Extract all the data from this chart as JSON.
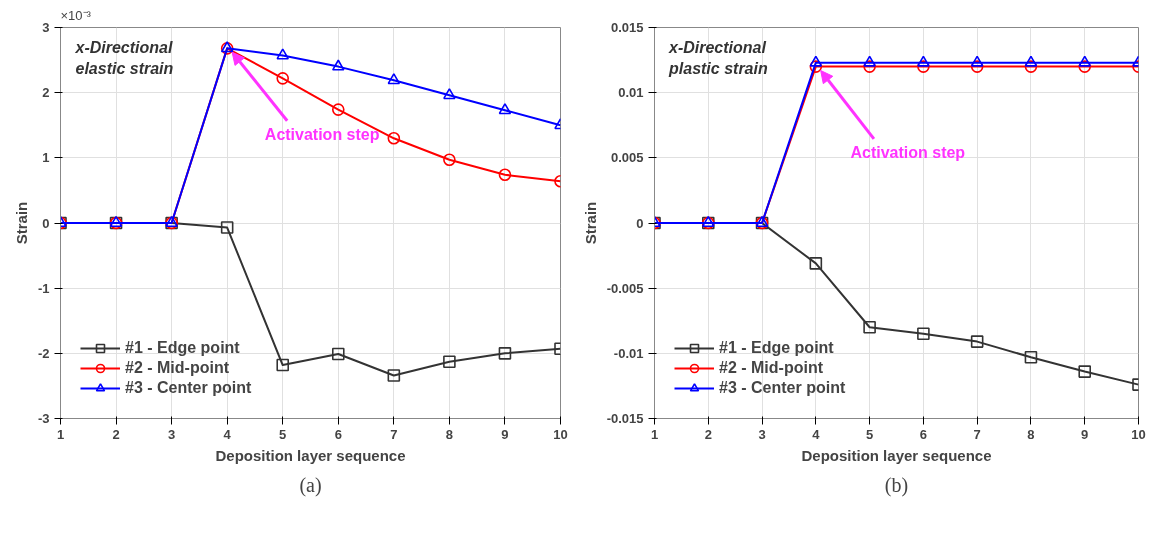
{
  "chart_data": [
    {
      "type": "line",
      "xlabel": "Deposition layer sequence",
      "ylabel": "Strain",
      "x": [
        1,
        2,
        3,
        4,
        5,
        6,
        7,
        8,
        9,
        10
      ],
      "xlim": [
        1,
        10
      ],
      "xticks": [
        1,
        2,
        3,
        4,
        5,
        6,
        7,
        8,
        9,
        10
      ],
      "ylim": [
        -3,
        3
      ],
      "yticks": [
        -3,
        -2,
        -1,
        0,
        1,
        2,
        3
      ],
      "grid": true,
      "legend": "bottom left",
      "line_style": "solid",
      "series": [
        {
          "name": "#1 - Edge point",
          "color": "#333333",
          "marker": "square",
          "values": [
            0,
            0,
            0,
            -0.07,
            -2.18,
            -2.01,
            -2.34,
            -2.13,
            -2.0,
            -1.93
          ]
        },
        {
          "name": "#2 - Mid-point",
          "color": "#ff0000",
          "marker": "circle",
          "values": [
            0,
            0,
            0,
            2.68,
            2.22,
            1.74,
            1.3,
            0.97,
            0.74,
            0.64
          ]
        },
        {
          "name": "#3 - Center point",
          "color": "#0000ff",
          "marker": "triangle",
          "values": [
            0,
            0,
            0,
            2.68,
            2.57,
            2.4,
            2.19,
            1.96,
            1.73,
            1.5
          ]
        }
      ],
      "annotations": [
        "×10⁻³",
        "x-Directional\nelastic strain",
        {
          "text": "Activation step",
          "x": 4,
          "y": 2.68
        },
        "(a)"
      ]
    },
    {
      "type": "line",
      "xlabel": "Deposition layer sequence",
      "ylabel": "Strain",
      "x": [
        1,
        2,
        3,
        4,
        5,
        6,
        7,
        8,
        9,
        10
      ],
      "xlim": [
        1,
        10
      ],
      "xticks": [
        1,
        2,
        3,
        4,
        5,
        6,
        7,
        8,
        9,
        10
      ],
      "ylim": [
        -0.015,
        0.015
      ],
      "yticks": [
        -0.015,
        -0.01,
        -0.005,
        0,
        0.005,
        0.01,
        0.015
      ],
      "grid": true,
      "legend": "bottom left",
      "line_style": "solid",
      "series": [
        {
          "name": "#1 - Edge point",
          "color": "#333333",
          "marker": "square",
          "values": [
            0,
            0,
            0,
            -0.0031,
            -0.008,
            -0.0085,
            -0.0091,
            -0.0103,
            -0.0114,
            -0.0124
          ]
        },
        {
          "name": "#2 - Mid-point",
          "color": "#ff0000",
          "marker": "circle",
          "values": [
            0,
            0,
            0,
            0.012,
            0.012,
            0.012,
            0.012,
            0.012,
            0.012,
            0.012
          ]
        },
        {
          "name": "#3 - Center point",
          "color": "#0000ff",
          "marker": "triangle",
          "values": [
            0,
            0,
            0,
            0.0123,
            0.0123,
            0.0123,
            0.0123,
            0.0123,
            0.0123,
            0.0123
          ]
        }
      ],
      "annotations": [
        "x-Directional\nplastic strain",
        {
          "text": "Activation step",
          "x": 4,
          "y": 0.012
        },
        "(b)"
      ]
    }
  ]
}
